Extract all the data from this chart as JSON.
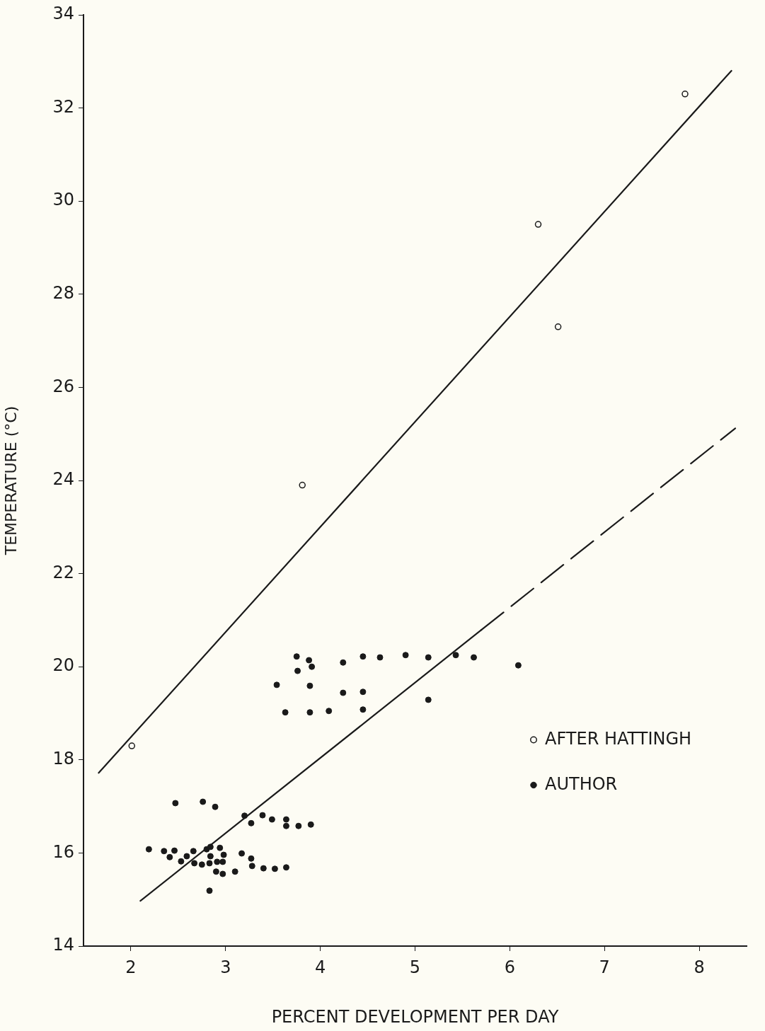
{
  "chart_data": {
    "type": "scatter",
    "xlabel": "PERCENT DEVELOPMENT PER DAY",
    "ylabel": "TEMPERATURE (°C)",
    "xlim": [
      1.5,
      8.5
    ],
    "ylim": [
      14,
      34
    ],
    "xticks": [
      2,
      3,
      4,
      5,
      6,
      7,
      8
    ],
    "yticks": [
      14,
      16,
      18,
      20,
      22,
      24,
      26,
      28,
      30,
      32,
      34
    ],
    "grid": false,
    "legend": "right",
    "marker": "circle",
    "series": [
      {
        "name": "AFTER HATTINGH",
        "color": "#1a1a1a",
        "x": [
          2.01,
          3.81,
          6.3,
          6.51,
          7.85
        ],
        "values": [
          18.3,
          23.9,
          29.5,
          27.3,
          32.3
        ]
      },
      {
        "name": "AUTHOR",
        "color": "#1a1a1a",
        "x": [
          2.47,
          2.76,
          2.89,
          3.2,
          3.39,
          3.49,
          3.64,
          3.64,
          3.77,
          3.9,
          3.27,
          2.19,
          2.35,
          2.46,
          2.41,
          2.59,
          2.66,
          2.53,
          2.67,
          2.75,
          2.83,
          2.8,
          2.84,
          2.84,
          2.94,
          2.98,
          2.91,
          2.97,
          2.9,
          2.97,
          3.1,
          3.17,
          3.27,
          3.28,
          3.4,
          3.52,
          3.64,
          2.83,
          3.75,
          3.88,
          3.91,
          3.76,
          4.24,
          4.45,
          4.63,
          4.9,
          5.14,
          5.43,
          5.62,
          6.09,
          3.54,
          3.89,
          4.24,
          4.45,
          5.14,
          3.63,
          3.89,
          4.09,
          4.45
        ],
        "values": [
          17.07,
          17.1,
          16.99,
          16.8,
          16.81,
          16.72,
          16.72,
          16.58,
          16.58,
          16.61,
          16.64,
          16.08,
          16.04,
          16.05,
          15.91,
          15.93,
          16.04,
          15.82,
          15.78,
          15.75,
          15.78,
          16.08,
          16.13,
          15.93,
          16.11,
          15.96,
          15.81,
          15.81,
          15.6,
          15.55,
          15.6,
          15.99,
          15.88,
          15.72,
          15.67,
          15.66,
          15.69,
          15.19,
          20.22,
          20.14,
          20.0,
          19.91,
          20.09,
          20.22,
          20.2,
          20.25,
          20.2,
          20.25,
          20.2,
          20.03,
          19.61,
          19.59,
          19.44,
          19.46,
          19.29,
          19.02,
          19.02,
          19.05,
          19.08
        ]
      },
      {
        "type": "line",
        "color": "#1a1a1a",
        "line_style": "solid",
        "marker": "none",
        "x": [
          1.66,
          8.34
        ],
        "values": [
          17.72,
          32.8
        ]
      },
      {
        "type": "line",
        "color": "#1a1a1a",
        "line_style": "solid",
        "marker": "none",
        "x": [
          2.1,
          5.7
        ],
        "values": [
          14.97,
          20.79
        ]
      },
      {
        "type": "line",
        "color": "#1a1a1a",
        "line_style": "dashed",
        "marker": "none",
        "x": [
          5.7,
          8.38
        ],
        "values": [
          20.79,
          25.12
        ]
      }
    ]
  }
}
